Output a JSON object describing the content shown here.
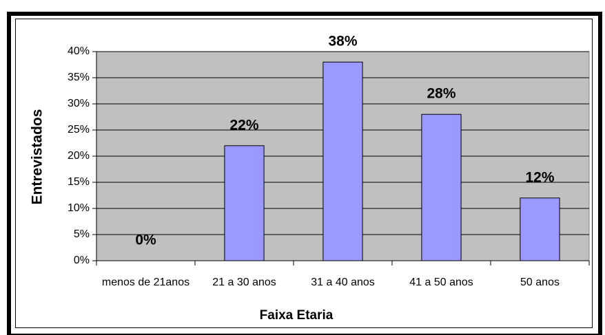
{
  "chart_data": {
    "type": "bar",
    "x_label": "Faixa Etaria",
    "y_label": "Entrevistados",
    "categories": [
      "menos de 21anos",
      "21 a 30 anos",
      "31 a 40 anos",
      "41 a 50 anos",
      "50 anos"
    ],
    "values": [
      0,
      22,
      38,
      28,
      12
    ],
    "value_labels": [
      "0%",
      "22%",
      "38%",
      "28%",
      "12%"
    ],
    "color": "#9999ff",
    "plot_background": "#c0c0c0",
    "ylim": [
      0,
      40
    ],
    "yticks": [
      {
        "value": 0,
        "label": "0%"
      },
      {
        "value": 5,
        "label": "5%"
      },
      {
        "value": 10,
        "label": "10%"
      },
      {
        "value": 15,
        "label": "15%"
      },
      {
        "value": 20,
        "label": "20%"
      },
      {
        "value": 25,
        "label": "25%"
      },
      {
        "value": 30,
        "label": "30%"
      },
      {
        "value": 35,
        "label": "35%"
      },
      {
        "value": 40,
        "label": "40%"
      }
    ],
    "grid": true
  }
}
